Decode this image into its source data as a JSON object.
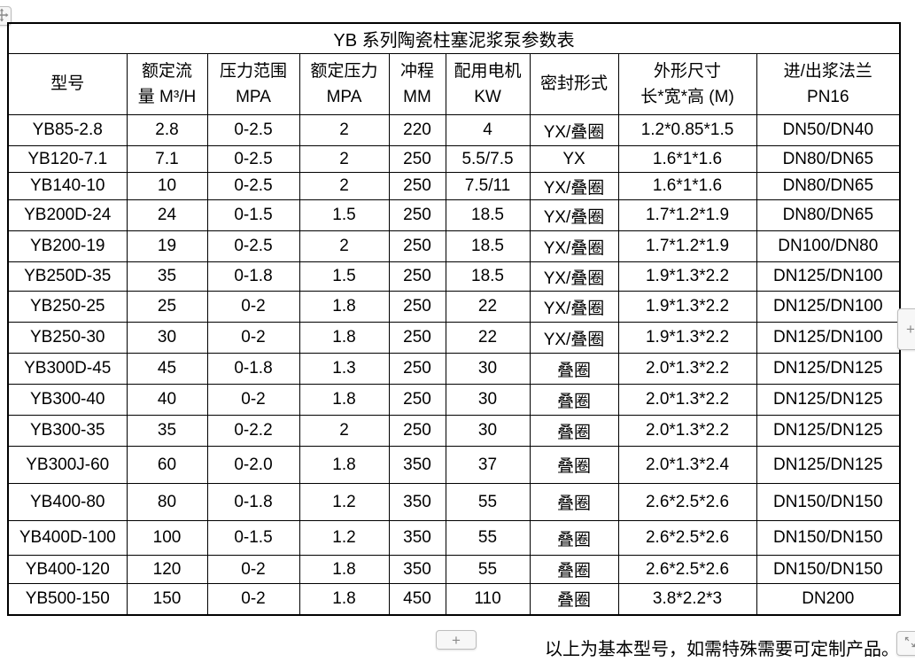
{
  "colors": {
    "background": "#ffffff",
    "table_border": "#000000",
    "text": "#000000",
    "widget_border": "#bdbdbd",
    "widget_background": "#f7f7f7",
    "widget_glyph": "#8a8a8a"
  },
  "icons": {
    "move_handle": "move-cross-arrow",
    "resize_handle": "diagonal-resize-arrow",
    "add_row": "plus",
    "add_column": "plus"
  },
  "widgets": {
    "add_row_label": "+",
    "add_column_label": "+"
  },
  "table": {
    "title": "YB 系列陶瓷柱塞泥浆泵参数表",
    "headers": [
      "型号",
      "额定流\n量 M³/H",
      "压力范围\nMPA",
      "额定压力\nMPA",
      "冲程\nMM",
      "配用电机\nKW",
      "密封形式",
      "外形尺寸\n长*宽*高 (M)",
      "进/出浆法兰\nPN16"
    ],
    "rows": [
      [
        "YB85-2.8",
        "2.8",
        "0-2.5",
        "2",
        "220",
        "4",
        "YX/叠圈",
        "1.2*0.85*1.5",
        "DN50/DN40"
      ],
      [
        "YB120-7.1",
        "7.1",
        "0-2.5",
        "2",
        "250",
        "5.5/7.5",
        "YX",
        "1.6*1*1.6",
        "DN80/DN65"
      ],
      [
        "YB140-10",
        "10",
        "0-2.5",
        "2",
        "250",
        "7.5/11",
        "YX/叠圈",
        "1.6*1*1.6",
        "DN80/DN65"
      ],
      [
        "YB200D-24",
        "24",
        "0-1.5",
        "1.5",
        "250",
        "18.5",
        "YX/叠圈",
        "1.7*1.2*1.9",
        "DN80/DN65"
      ],
      [
        "YB200-19",
        "19",
        "0-2.5",
        "2",
        "250",
        "18.5",
        "YX/叠圈",
        "1.7*1.2*1.9",
        "DN100/DN80"
      ],
      [
        "YB250D-35",
        "35",
        "0-1.8",
        "1.5",
        "250",
        "18.5",
        "YX/叠圈",
        "1.9*1.3*2.2",
        "DN125/DN100"
      ],
      [
        "YB250-25",
        "25",
        "0-2",
        "1.8",
        "250",
        "22",
        "YX/叠圈",
        "1.9*1.3*2.2",
        "DN125/DN100"
      ],
      [
        "YB250-30",
        "30",
        "0-2",
        "1.8",
        "250",
        "22",
        "YX/叠圈",
        "1.9*1.3*2.2",
        "DN125/DN100"
      ],
      [
        "YB300D-45",
        "45",
        "0-1.8",
        "1.3",
        "250",
        "30",
        "叠圈",
        "2.0*1.3*2.2",
        "DN125/DN125"
      ],
      [
        "YB300-40",
        "40",
        "0-2",
        "1.8",
        "250",
        "30",
        "叠圈",
        "2.0*1.3*2.2",
        "DN125/DN125"
      ],
      [
        "YB300-35",
        "35",
        "0-2.2",
        "2",
        "250",
        "30",
        "叠圈",
        "2.0*1.3*2.2",
        "DN125/DN125"
      ],
      [
        "YB300J-60",
        "60",
        "0-2.0",
        "1.8",
        "350",
        "37",
        "叠圈",
        "2.0*1.3*2.4",
        "DN125/DN125"
      ],
      [
        "YB400-80",
        "80",
        "0-1.8",
        "1.2",
        "350",
        "55",
        "叠圈",
        "2.6*2.5*2.6",
        "DN150/DN150"
      ],
      [
        "YB400D-100",
        "100",
        "0-1.5",
        "1.2",
        "350",
        "55",
        "叠圈",
        "2.6*2.5*2.6",
        "DN150/DN150"
      ],
      [
        "YB400-120",
        "120",
        "0-2",
        "1.8",
        "350",
        "55",
        "叠圈",
        "2.6*2.5*2.6",
        "DN150/DN150"
      ],
      [
        "YB500-150",
        "150",
        "0-2",
        "1.8",
        "450",
        "110",
        "叠圈",
        "3.8*2.2*3",
        "DN200"
      ]
    ]
  },
  "footer": {
    "note": "以上为基本型号，如需特殊需要可定制产品。"
  }
}
